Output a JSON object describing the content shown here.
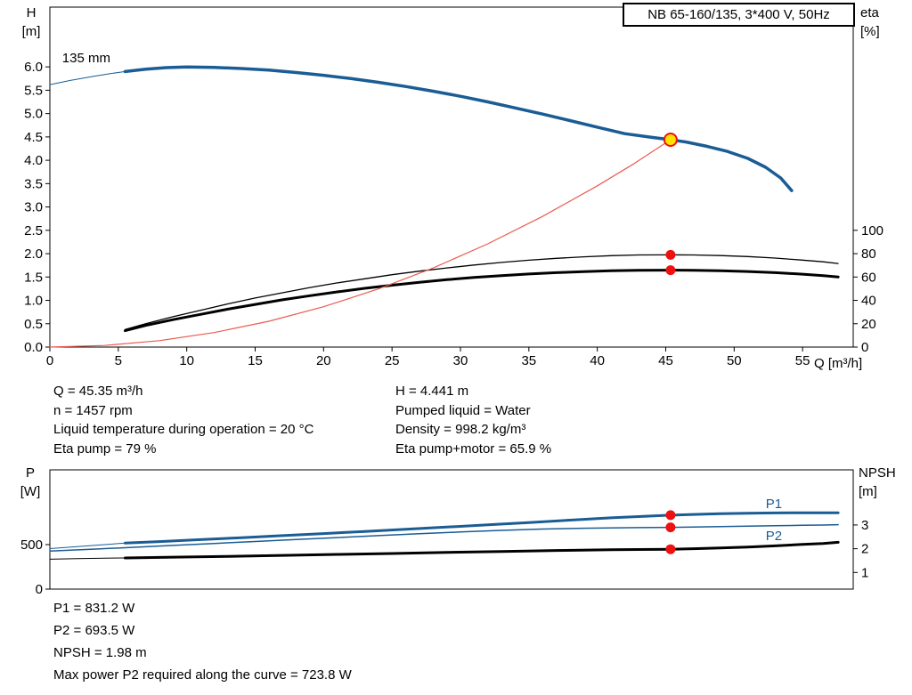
{
  "title_box": {
    "label": "NB 65-160/135, 3*400 V, 50Hz"
  },
  "axis_titles": {
    "h": [
      "H",
      "[m]"
    ],
    "eta": [
      "eta",
      "[%]"
    ],
    "q": "Q [m³/h]",
    "p": [
      "P",
      "[W]"
    ],
    "npsh": [
      "NPSH",
      "[m]"
    ]
  },
  "info_top": {
    "left": [
      "Q = 45.35 m³/h",
      "n = 1457 rpm",
      "Liquid temperature during operation = 20 °C",
      "Eta pump = 79 %"
    ],
    "right": [
      "H = 4.441 m",
      "Pumped liquid = Water",
      "Density = 998.2 kg/m³",
      "Eta pump+motor = 65.9 %"
    ]
  },
  "info_bottom": [
    "P1 = 831.2 W",
    "P2 = 693.5 W",
    "NPSH = 1.98 m",
    "Max power P2 required along the curve = 723.8 W"
  ],
  "colors": {
    "curve_blue": "#1a5c94",
    "curve_red": "#e95c50",
    "dot_red": "#ee1111",
    "duty_point_fill": "#ffe100",
    "black": "#000000"
  },
  "chart_data": [
    {
      "id": "hq",
      "type": "line",
      "x_axis": {
        "min": 0,
        "max": 58.7,
        "ticks": [
          {
            "v": 0,
            "l": "0"
          },
          {
            "v": 5,
            "l": "5"
          },
          {
            "v": 10,
            "l": "10"
          },
          {
            "v": 15,
            "l": "15"
          },
          {
            "v": 20,
            "l": "20"
          },
          {
            "v": 25,
            "l": "25"
          },
          {
            "v": 30,
            "l": "30"
          },
          {
            "v": 35,
            "l": "35"
          },
          {
            "v": 40,
            "l": "40"
          },
          {
            "v": 45,
            "l": "45"
          },
          {
            "v": 50,
            "l": "50"
          },
          {
            "v": 55,
            "l": "55"
          }
        ]
      },
      "y_left": {
        "min": 0,
        "max": 7.28,
        "ticks": [
          {
            "v": 0,
            "l": "0.0"
          },
          {
            "v": 0.5,
            "l": "0.5"
          },
          {
            "v": 1,
            "l": "1.0"
          },
          {
            "v": 1.5,
            "l": "1.5"
          },
          {
            "v": 2,
            "l": "2.0"
          },
          {
            "v": 2.5,
            "l": "2.5"
          },
          {
            "v": 3,
            "l": "3.0"
          },
          {
            "v": 3.5,
            "l": "3.5"
          },
          {
            "v": 4,
            "l": "4.0"
          },
          {
            "v": 4.5,
            "l": "4.5"
          },
          {
            "v": 5,
            "l": "5.0"
          },
          {
            "v": 5.5,
            "l": "5.5"
          },
          {
            "v": 6,
            "l": "6.0"
          }
        ]
      },
      "y_right": {
        "min": 0,
        "max": 291.2,
        "ticks": [
          {
            "v": 0,
            "l": "0"
          },
          {
            "v": 20,
            "l": "20"
          },
          {
            "v": 40,
            "l": "40"
          },
          {
            "v": 60,
            "l": "60"
          },
          {
            "v": 80,
            "l": "80"
          },
          {
            "v": 100,
            "l": "100"
          }
        ]
      },
      "series": [
        {
          "name": "eta-pump",
          "axis": "right",
          "color": "#000000",
          "width": 1.3,
          "points": [
            [
              5.5,
              15
            ],
            [
              7,
              20
            ],
            [
              9,
              26
            ],
            [
              11,
              31.5
            ],
            [
              13,
              37
            ],
            [
              15,
              42
            ],
            [
              17,
              46.5
            ],
            [
              19,
              51
            ],
            [
              21,
              55
            ],
            [
              23,
              58.5
            ],
            [
              25,
              62
            ],
            [
              27,
              65
            ],
            [
              29,
              67.8
            ],
            [
              31,
              70.3
            ],
            [
              33,
              72.5
            ],
            [
              35,
              74.4
            ],
            [
              37,
              76
            ],
            [
              39,
              77.3
            ],
            [
              41,
              78.3
            ],
            [
              43,
              78.9
            ],
            [
              45.35,
              79
            ],
            [
              47,
              78.9
            ],
            [
              49,
              78.4
            ],
            [
              51,
              77.5
            ],
            [
              53,
              76.2
            ],
            [
              55,
              74.5
            ],
            [
              56.5,
              73
            ],
            [
              57.6,
              71.6
            ]
          ]
        },
        {
          "name": "eta-pump-motor",
          "axis": "right",
          "color": "#000000",
          "width": 3,
          "points": [
            [
              5.5,
              14
            ],
            [
              7,
              18.5
            ],
            [
              9,
              23.5
            ],
            [
              11,
              28
            ],
            [
              13,
              32.5
            ],
            [
              15,
              36.5
            ],
            [
              17,
              40.5
            ],
            [
              19,
              44
            ],
            [
              21,
              47.3
            ],
            [
              23,
              50.3
            ],
            [
              25,
              53
            ],
            [
              27,
              55.5
            ],
            [
              29,
              57.7
            ],
            [
              31,
              59.6
            ],
            [
              33,
              61.2
            ],
            [
              35,
              62.6
            ],
            [
              37,
              63.7
            ],
            [
              39,
              64.6
            ],
            [
              41,
              65.3
            ],
            [
              43,
              65.75
            ],
            [
              45.35,
              65.9
            ],
            [
              47,
              65.8
            ],
            [
              49,
              65.4
            ],
            [
              51,
              64.7
            ],
            [
              53,
              63.7
            ],
            [
              55,
              62.4
            ],
            [
              56.5,
              61.2
            ],
            [
              57.6,
              60.1
            ]
          ]
        },
        {
          "name": "system-curve",
          "axis": "left",
          "color": "#e95c50",
          "width": 1.2,
          "points": [
            [
              0,
              0
            ],
            [
              4,
              0.035
            ],
            [
              8,
              0.138
            ],
            [
              12,
              0.311
            ],
            [
              16,
              0.553
            ],
            [
              20,
              0.864
            ],
            [
              24,
              1.244
            ],
            [
              28,
              1.693
            ],
            [
              32,
              2.211
            ],
            [
              36,
              2.798
            ],
            [
              40,
              3.454
            ],
            [
              42.7,
              3.93
            ],
            [
              45.35,
              4.441
            ]
          ]
        },
        {
          "name": "pump-curve-trim",
          "axis": "left",
          "color": "#1a5c94",
          "width": 1,
          "points": [
            [
              0,
              5.62
            ],
            [
              1.5,
              5.71
            ],
            [
              3,
              5.79
            ],
            [
              4.3,
              5.85
            ],
            [
              5.5,
              5.9
            ]
          ]
        },
        {
          "name": "pump-curve",
          "axis": "left",
          "color": "#1a5c94",
          "width": 3.5,
          "points": [
            [
              5.5,
              5.9
            ],
            [
              7,
              5.95
            ],
            [
              8.5,
              5.985
            ],
            [
              10,
              6.0
            ],
            [
              12,
              5.99
            ],
            [
              14,
              5.965
            ],
            [
              16,
              5.93
            ],
            [
              18,
              5.88
            ],
            [
              20,
              5.82
            ],
            [
              22,
              5.75
            ],
            [
              24,
              5.67
            ],
            [
              26,
              5.58
            ],
            [
              28,
              5.48
            ],
            [
              30,
              5.37
            ],
            [
              32,
              5.25
            ],
            [
              34,
              5.12
            ],
            [
              36,
              4.99
            ],
            [
              38,
              4.85
            ],
            [
              40,
              4.71
            ],
            [
              42,
              4.57
            ],
            [
              44,
              4.49
            ],
            [
              45.35,
              4.441
            ],
            [
              46.5,
              4.39
            ],
            [
              48,
              4.3
            ],
            [
              49.5,
              4.19
            ],
            [
              51,
              4.04
            ],
            [
              52.3,
              3.85
            ],
            [
              53.4,
              3.62
            ],
            [
              54.2,
              3.35
            ]
          ]
        }
      ],
      "markers": [
        {
          "name": "eta-pump-point",
          "q": 45.35,
          "v": 79,
          "axis": "right",
          "style": "dot"
        },
        {
          "name": "eta-pump-motor-point",
          "q": 45.35,
          "v": 65.9,
          "axis": "right",
          "style": "dot"
        },
        {
          "name": "duty-point",
          "q": 45.35,
          "v": 4.441,
          "axis": "left",
          "style": "duty"
        }
      ],
      "annotations": [
        {
          "name": "impeller-diameter-label",
          "text": "135 mm",
          "q": 0.9,
          "v": 6.1,
          "axis": "left",
          "color": "#000000",
          "anchor": "start"
        }
      ]
    },
    {
      "id": "power",
      "type": "line",
      "x_axis": {
        "min": 0,
        "max": 58.7,
        "ticks": []
      },
      "y_left": {
        "min": 0,
        "max": 1340,
        "ticks": [
          {
            "v": 0,
            "l": "0"
          },
          {
            "v": 500,
            "l": "500"
          }
        ]
      },
      "y_right": {
        "min": 0.3,
        "max": 5.32,
        "ticks": [
          {
            "v": 1,
            "l": "1"
          },
          {
            "v": 2,
            "l": "2"
          },
          {
            "v": 3,
            "l": "3"
          }
        ]
      },
      "series": [
        {
          "name": "p2-curve",
          "axis": "left",
          "color": "#1a5c94",
          "width": 1.5,
          "points": [
            [
              0,
              428
            ],
            [
              3,
              448
            ],
            [
              6,
              469
            ],
            [
              9,
              491
            ],
            [
              12,
              513
            ],
            [
              15,
              535
            ],
            [
              18,
              557
            ],
            [
              21,
              579
            ],
            [
              24,
              601
            ],
            [
              27,
              622
            ],
            [
              30,
              642
            ],
            [
              33,
              660
            ],
            [
              36,
              675
            ],
            [
              39,
              684
            ],
            [
              41,
              688
            ],
            [
              43,
              691
            ],
            [
              45.35,
              693.5
            ],
            [
              47,
              697
            ],
            [
              49,
              702
            ],
            [
              51,
              707
            ],
            [
              53,
              712
            ],
            [
              55,
              717
            ],
            [
              56.5,
              720
            ],
            [
              57.6,
              723.8
            ]
          ]
        },
        {
          "name": "p1-curve-trim",
          "axis": "left",
          "color": "#1a5c94",
          "width": 1,
          "points": [
            [
              0,
              455
            ],
            [
              2,
              478
            ],
            [
              4,
              500
            ],
            [
              5.5,
              517
            ]
          ]
        },
        {
          "name": "p1-curve",
          "axis": "left",
          "color": "#1a5c94",
          "width": 3,
          "points": [
            [
              5.5,
              517
            ],
            [
              8,
              534
            ],
            [
              11,
              556
            ],
            [
              14,
              578
            ],
            [
              17,
              601
            ],
            [
              20,
              624
            ],
            [
              23,
              648
            ],
            [
              26,
              672
            ],
            [
              29,
              697
            ],
            [
              32,
              722
            ],
            [
              35,
              748
            ],
            [
              38,
              775
            ],
            [
              41,
              801
            ],
            [
              43,
              815
            ],
            [
              45.35,
              831.2
            ],
            [
              47,
              839
            ],
            [
              49,
              847
            ],
            [
              51,
              852
            ],
            [
              53,
              856
            ],
            [
              55,
              858
            ],
            [
              57.6,
              858
            ]
          ]
        },
        {
          "name": "npsh-curve-trim",
          "axis": "right",
          "color": "#000000",
          "width": 1,
          "points": [
            [
              0,
              1.56
            ],
            [
              2,
              1.58
            ],
            [
              4,
              1.6
            ],
            [
              5.5,
              1.61
            ]
          ]
        },
        {
          "name": "npsh-curve",
          "axis": "right",
          "color": "#000000",
          "width": 3,
          "points": [
            [
              5.5,
              1.61
            ],
            [
              9,
              1.645
            ],
            [
              13,
              1.68
            ],
            [
              17,
              1.72
            ],
            [
              21,
              1.76
            ],
            [
              25,
              1.8
            ],
            [
              29,
              1.845
            ],
            [
              33,
              1.885
            ],
            [
              37,
              1.925
            ],
            [
              41,
              1.955
            ],
            [
              43,
              1.967
            ],
            [
              45.35,
              1.98
            ],
            [
              47,
              2.0
            ],
            [
              49,
              2.03
            ],
            [
              51,
              2.07
            ],
            [
              53,
              2.12
            ],
            [
              55,
              2.18
            ],
            [
              56.5,
              2.22
            ],
            [
              57.6,
              2.27
            ]
          ]
        }
      ],
      "markers": [
        {
          "name": "p1-point",
          "q": 45.35,
          "v": 831.2,
          "axis": "left",
          "style": "dot"
        },
        {
          "name": "p2-point",
          "q": 45.35,
          "v": 693.5,
          "axis": "left",
          "style": "dot"
        },
        {
          "name": "npsh-point",
          "q": 45.35,
          "v": 1.98,
          "axis": "right",
          "style": "dot"
        }
      ],
      "annotations": [
        {
          "name": "p1-label",
          "text": "P1",
          "q": 52.3,
          "v": 910,
          "axis": "left",
          "color": "#1a5c94",
          "anchor": "start"
        },
        {
          "name": "p2-label",
          "text": "P2",
          "q": 52.3,
          "v": 550,
          "axis": "left",
          "color": "#1a5c94",
          "anchor": "start"
        }
      ]
    }
  ]
}
